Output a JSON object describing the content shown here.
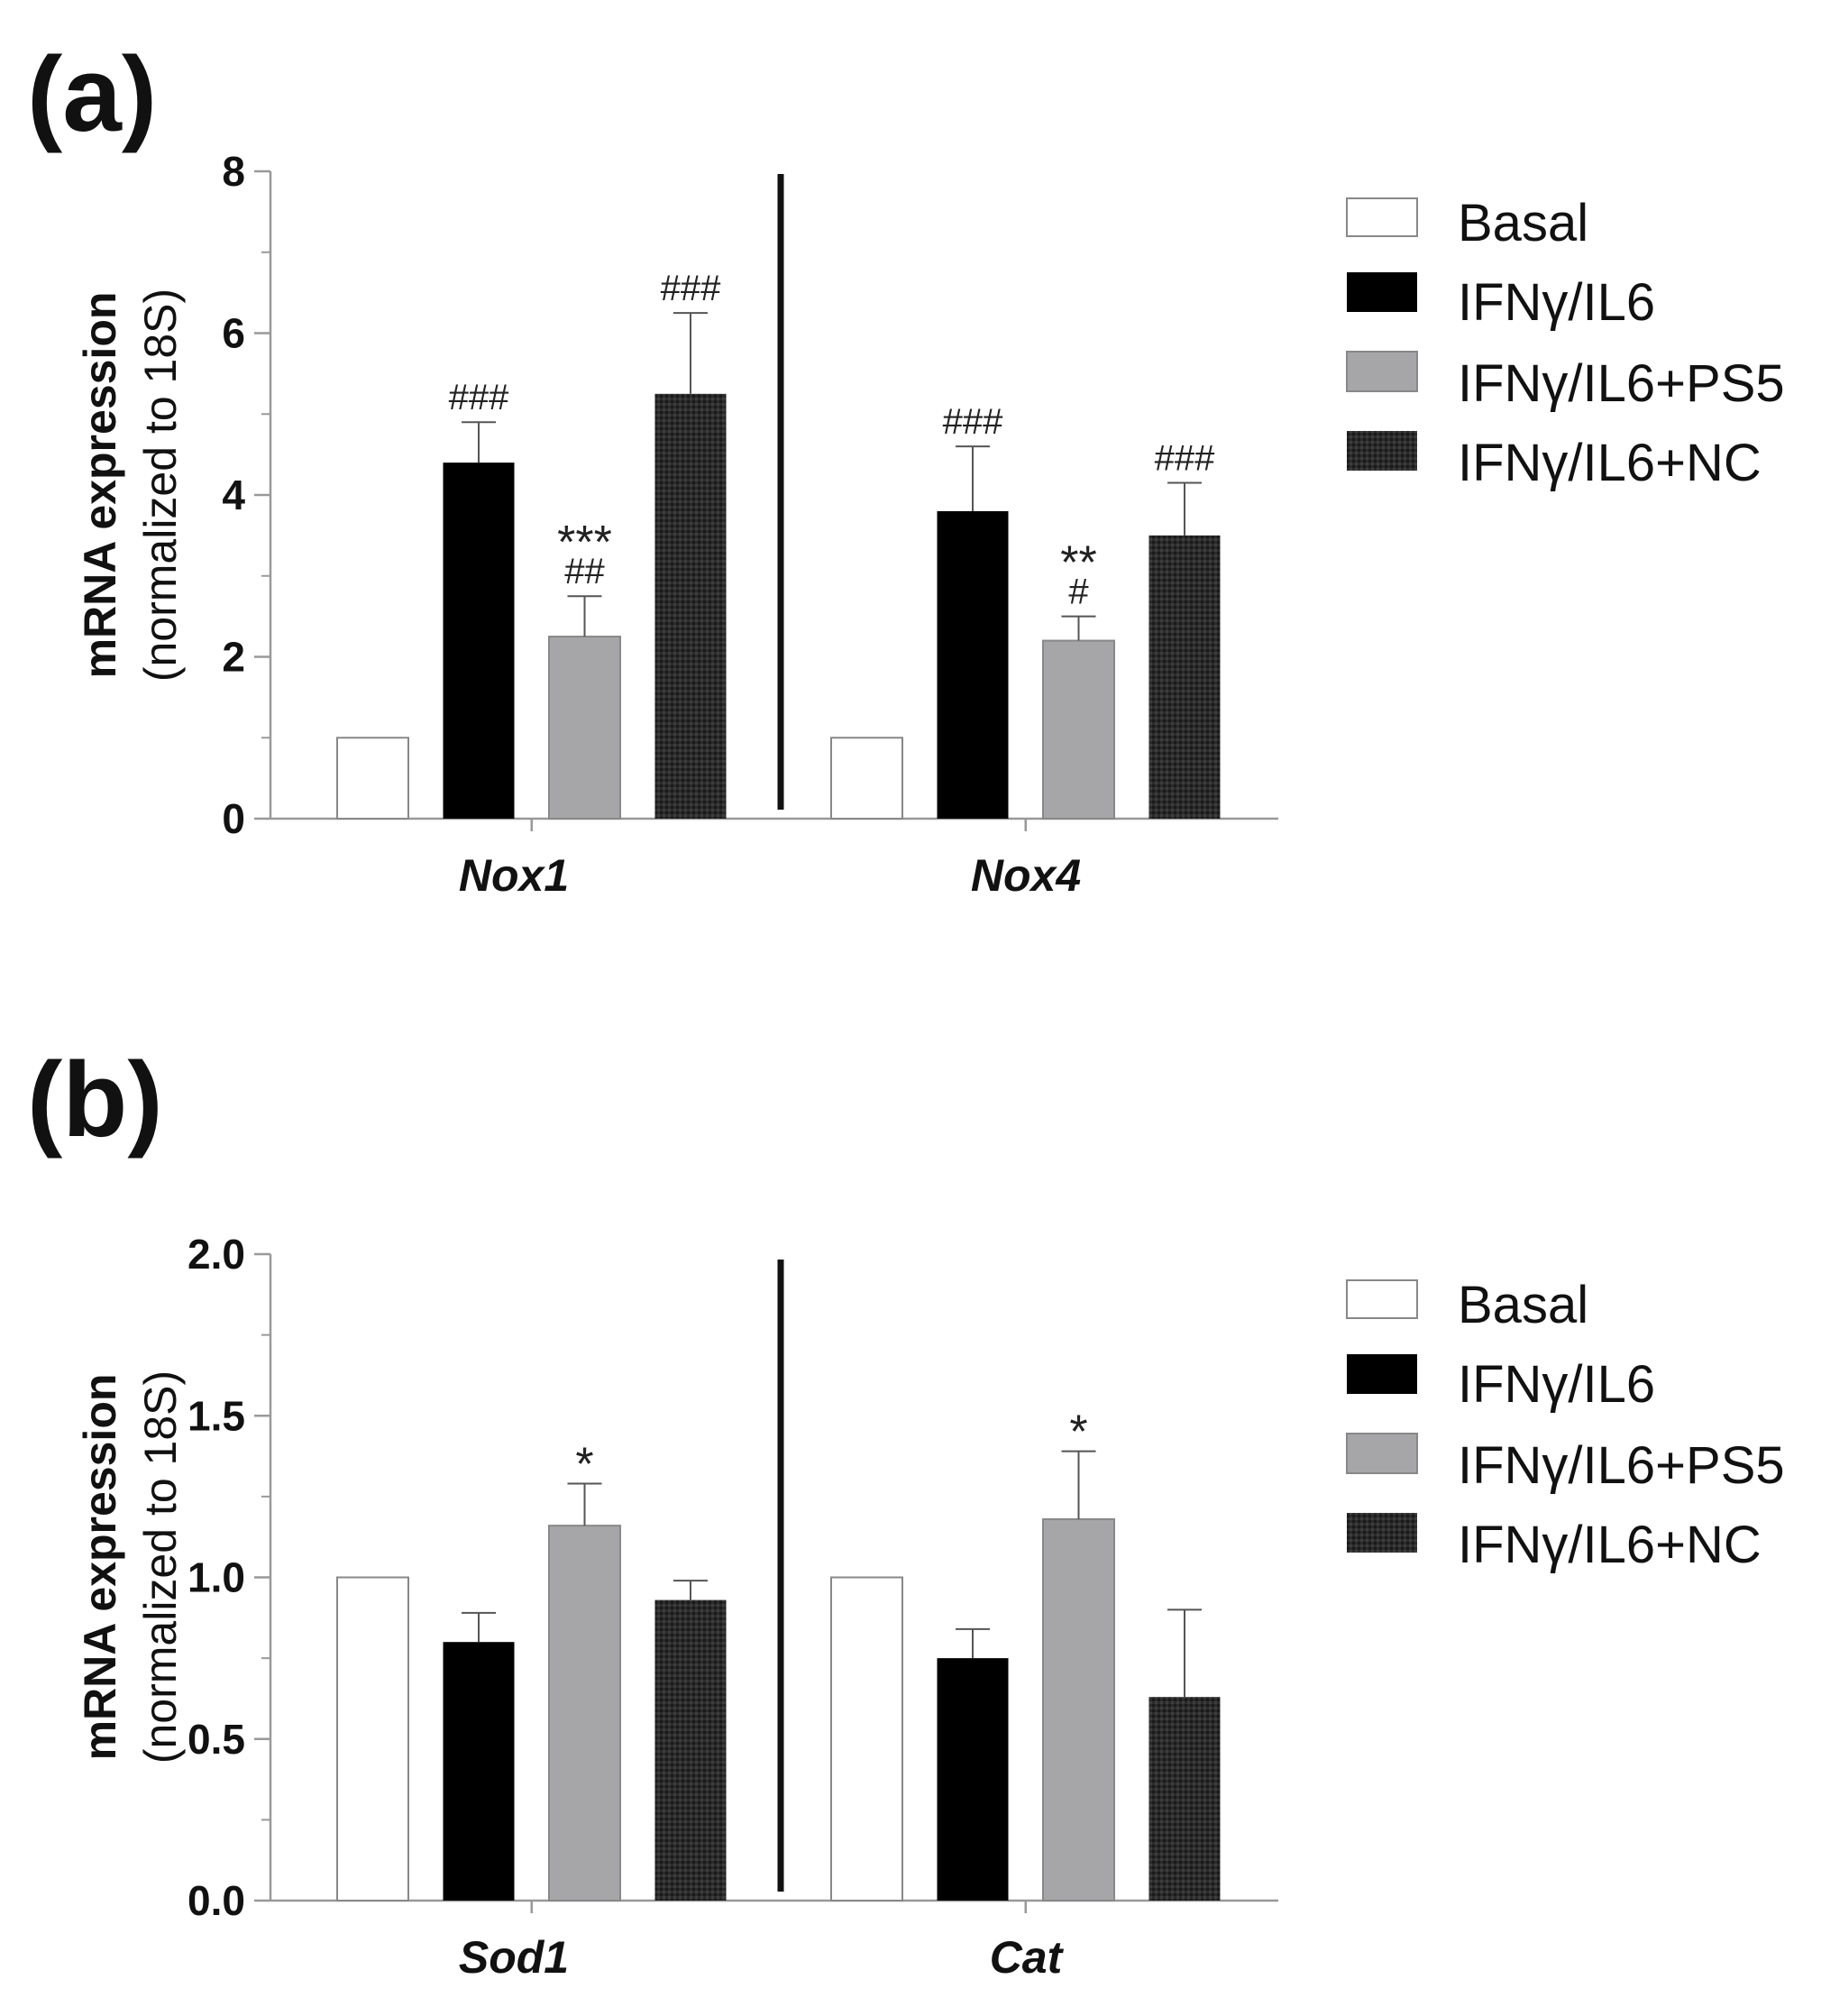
{
  "colors": {
    "basal": "#ffffff",
    "ifn": "#000000",
    "ps5": "#a6a6a8",
    "nc": "#2b2b2b",
    "axis": "#999999",
    "text": "#111111"
  },
  "legend": [
    "Basal",
    "IFNγ/IL6",
    "IFNγ/IL6+PS5",
    "IFNγ/IL6+NC"
  ],
  "chart_data": [
    {
      "panel_label": "(a)",
      "type": "bar",
      "ylabel_line1": "mRNA expression",
      "ylabel_line2": "(normalized to 18S)",
      "ylim": [
        0,
        8
      ],
      "yticks": [
        0,
        2,
        4,
        6,
        8
      ],
      "ytick_labels": [
        "0",
        "2",
        "4",
        "6",
        "8"
      ],
      "categories": [
        "Nox1",
        "Nox4"
      ],
      "series": [
        {
          "name": "Basal",
          "values": [
            1.0,
            1.0
          ],
          "errors": [
            0,
            0
          ],
          "annotations": [
            "",
            ""
          ]
        },
        {
          "name": "IFNγ/IL6",
          "values": [
            4.4,
            3.8
          ],
          "errors": [
            0.5,
            0.8
          ],
          "annotations": [
            "###",
            "###"
          ]
        },
        {
          "name": "IFNγ/IL6+PS5",
          "values": [
            2.25,
            2.2
          ],
          "errors": [
            0.5,
            0.3
          ],
          "annotations": [
            "***|##",
            "**|#"
          ]
        },
        {
          "name": "IFNγ/IL6+NC",
          "values": [
            5.25,
            3.5
          ],
          "errors": [
            1.0,
            0.65
          ],
          "annotations": [
            "###",
            "###"
          ]
        }
      ]
    },
    {
      "panel_label": "(b)",
      "type": "bar",
      "ylabel_line1": "mRNA expression",
      "ylabel_line2": "(normalized to 18S)",
      "ylim": [
        0,
        2
      ],
      "yticks": [
        0,
        0.5,
        1.0,
        1.5,
        2.0
      ],
      "ytick_labels": [
        "0.0",
        "0.5",
        "1.0",
        "1.5",
        "2.0"
      ],
      "categories": [
        "Sod1",
        "Cat"
      ],
      "series": [
        {
          "name": "Basal",
          "values": [
            1.0,
            1.0
          ],
          "errors": [
            0,
            0
          ],
          "annotations": [
            "",
            ""
          ]
        },
        {
          "name": "IFNγ/IL6",
          "values": [
            0.8,
            0.75
          ],
          "errors": [
            0.09,
            0.09
          ],
          "annotations": [
            "",
            ""
          ]
        },
        {
          "name": "IFNγ/IL6+PS5",
          "values": [
            1.16,
            1.18
          ],
          "errors": [
            0.13,
            0.21
          ],
          "annotations": [
            "*",
            "*"
          ]
        },
        {
          "name": "IFNγ/IL6+NC",
          "values": [
            0.93,
            0.63
          ],
          "errors": [
            0.06,
            0.27
          ],
          "annotations": [
            "",
            ""
          ]
        }
      ]
    }
  ]
}
